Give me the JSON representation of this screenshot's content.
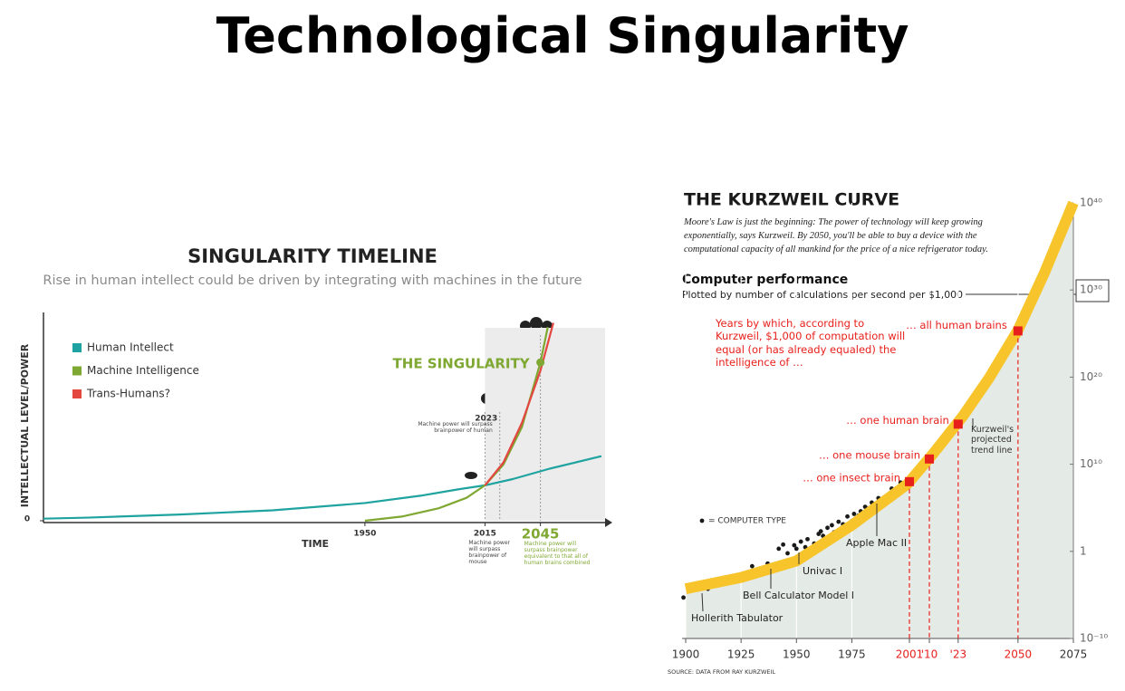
{
  "title": "Technological Singularity",
  "chart_data": [
    {
      "type": "line",
      "title": "SINGULARITY TIMELINE",
      "subtitle": "Rise in human intellect could be driven by integrating with machines in the future",
      "y_label": "INTELLECTUAL LEVEL/POWER",
      "x_label": "TIME",
      "xlim": [
        1776,
        2080
      ],
      "xticks": [
        1950,
        2015,
        2045
      ],
      "ylim": [
        0,
        100
      ],
      "yticks": [
        0
      ],
      "legend": "top-left",
      "series": [
        {
          "name": "Human Intellect",
          "color": "#1fa3a0",
          "x": [
            1776,
            1800,
            1850,
            1900,
            1950,
            1980,
            2000,
            2015,
            2030,
            2050,
            2078
          ],
          "values": [
            1,
            1.5,
            3,
            5,
            8.5,
            12,
            15,
            17,
            20,
            25,
            31
          ]
        },
        {
          "name": "Machine Intelligence",
          "color": "#7fa832",
          "x": [
            1950,
            1970,
            1990,
            2005,
            2015,
            2025,
            2035,
            2045,
            2049
          ],
          "values": [
            0,
            2,
            6,
            11,
            17,
            27,
            45,
            76,
            93
          ]
        },
        {
          "name": "Trans-Humans?",
          "color": "#e3473f",
          "x": [
            2015,
            2025,
            2035,
            2045,
            2052
          ],
          "values": [
            17,
            28,
            47,
            72,
            95
          ]
        }
      ],
      "singularity": {
        "label": "THE SINGULARITY",
        "x": 2045,
        "value": 76
      },
      "annotations": [
        {
          "x": 2015,
          "text": "Machine power will surpass brainpower of mouse"
        },
        {
          "x": 2023,
          "text": "Machine power will surpass brainpower of human"
        },
        {
          "x": 2045,
          "text": "Machine power will surpass brainpower equivalent to that all of human brains combined"
        }
      ]
    },
    {
      "type": "scatter",
      "yscale": "log",
      "title": "THE KURZWEIL CURVE",
      "subtitle": "Moore's Law is just the beginning: The power of technology will keep growing exponentially, says Kurzweil. By 2050, you'll be able to buy a device with the computational capacity of all mankind for the price of a nice refrigerator today.",
      "y_label": "Computer performance",
      "y_sublabel": "Plotted by number of calculations per second per $1,000",
      "note": "Years by which, according to Kurzweil, $1,000 of computation will equal (or has already equaled) the intelligence of …",
      "source": "SOURCE: DATA FROM RAY KURZWEIL",
      "xlim": [
        1900,
        2075
      ],
      "xticks": [
        1900,
        1925,
        1950,
        1975,
        2001,
        {
          "value": 2010,
          "label": "'10"
        },
        {
          "value": 2023,
          "label": "'23"
        },
        2050,
        2075
      ],
      "ylim": [
        1e-10,
        1e+40
      ],
      "yticks": [
        {
          "value": 1e+40,
          "label": "10⁴⁰"
        },
        {
          "value": 1e+30,
          "label": "10³⁰"
        },
        {
          "value": 1e+20,
          "label": "10²⁰"
        },
        {
          "value": 10000000000.0,
          "label": "10¹⁰"
        },
        1,
        {
          "value": 1e-10,
          "label": "10⁻¹⁰"
        }
      ],
      "grid": true,
      "series": [
        {
          "name": "= COMPUTER TYPE",
          "mark": "dot",
          "color": "#1a1a1a",
          "x": [
            1899,
            1907,
            1910,
            1918,
            1927,
            1930,
            1937,
            1942,
            1944,
            1946,
            1949,
            1950,
            1952,
            1954,
            1955,
            1957,
            1958,
            1960,
            1961,
            1962,
            1964,
            1966,
            1967,
            1969,
            1971,
            1973,
            1975,
            1976,
            1978,
            1979,
            1981,
            1982,
            1984,
            1987,
            1993,
            1997
          ],
          "values": [
            5e-06,
            8e-05,
            5e-05,
            0.001,
            0.001,
            0.02,
            0.04,
            2,
            6,
            0.6,
            5,
            2,
            13,
            3,
            25,
            0.5,
            8,
            100,
            200,
            60,
            500,
            1000,
            160,
            2500,
            1300,
            10000.0,
            3000,
            20000.0,
            13000.0,
            40000.0,
            130000.0,
            80000.0,
            400000.0,
            1300000.0,
            16000000.0,
            80000000.0
          ]
        },
        {
          "name": "Kurzweil's projected trend line",
          "mark": "band",
          "color": "#f7c52b",
          "x": [
            1900,
            1925,
            1950,
            1975,
            2000,
            2012,
            2025,
            2037,
            2050,
            2062,
            2075
          ],
          "values": [
            5e-05,
            0.001,
            0.08,
            1000,
            50000000.0,
            200000000000.0,
            3000000000000000.0,
            8e+19,
            2.5e+25,
            1e+32,
            1e+40
          ]
        },
        {
          "mark": "square",
          "color": "#e8201c",
          "x": [
            2001,
            2010,
            2023,
            2050
          ],
          "values": [
            100000000.0,
            40000000000.0,
            400000000000000.0,
            2e+25
          ],
          "labels": [
            "… one insect brain",
            "… one mouse brain",
            "… one human brain",
            "… all human brains"
          ]
        }
      ],
      "annotations": [
        "Hollerith Tabulator",
        "Bell Calculator Model I",
        "Univac I",
        "Apple Mac II"
      ]
    }
  ]
}
